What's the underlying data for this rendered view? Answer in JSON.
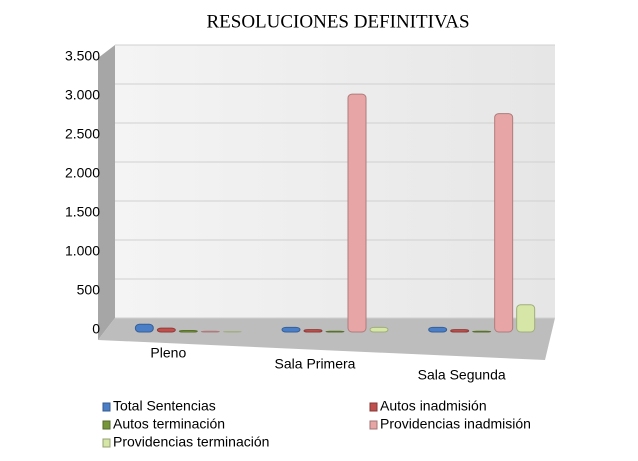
{
  "chart_data": {
    "type": "bar",
    "title": "RESOLUCIONES DEFINITIVAS",
    "categories": [
      "Pleno",
      "Sala Primera",
      "Sala Segunda"
    ],
    "series": [
      {
        "name": "Total Sentencias",
        "color": "#4a7fc8",
        "values": [
          100,
          60,
          60
        ]
      },
      {
        "name": "Autos inadmisión",
        "color": "#c0504d",
        "values": [
          50,
          30,
          30
        ]
      },
      {
        "name": "Autos terminación",
        "color": "#77963a",
        "values": [
          20,
          10,
          10
        ]
      },
      {
        "name": "Providencias inadmisión",
        "color": "#e8a5a6",
        "values": [
          10,
          3050,
          2800
        ]
      },
      {
        "name": "Providencias terminación",
        "color": "#d5e6a6",
        "values": [
          5,
          60,
          350
        ]
      }
    ],
    "ylim": [
      0,
      3500
    ],
    "yticks": [
      0,
      500,
      {
        "value": 1000,
        "label": "1.000"
      },
      {
        "value": 1500,
        "label": "1.500"
      },
      {
        "value": 2000,
        "label": "2.000"
      },
      {
        "value": 2500,
        "label": "2.500"
      },
      {
        "value": 3000,
        "label": "3.000"
      },
      {
        "value": 3500,
        "label": "3.500"
      }
    ],
    "grid": true
  }
}
